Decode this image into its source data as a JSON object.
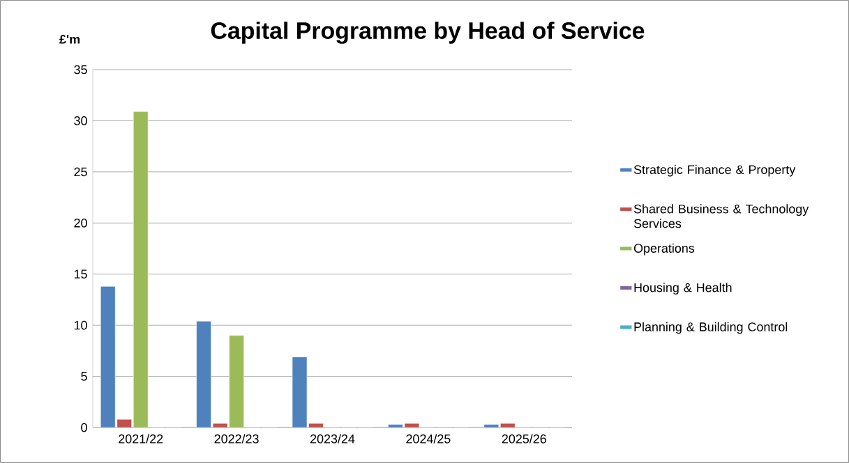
{
  "chart_data": {
    "type": "bar",
    "title": "Capital Programme by Head of Service",
    "ylabel": "£'m",
    "categories": [
      "2021/22",
      "2022/23",
      "2023/24",
      "2024/25",
      "2025/26"
    ],
    "series": [
      {
        "name": "Strategic Finance & Property",
        "color": "#4f81bd",
        "values": [
          13.8,
          10.4,
          6.9,
          0.3,
          0.3
        ]
      },
      {
        "name": "Shared Business & Technology Services",
        "color": "#c0504d",
        "values": [
          0.8,
          0.4,
          0.4,
          0.4,
          0.4
        ]
      },
      {
        "name": "Operations",
        "color": "#9bbb59",
        "values": [
          30.9,
          9.0,
          0,
          0,
          0
        ]
      },
      {
        "name": "Housing & Health",
        "color": "#8064a2",
        "values": [
          0,
          0,
          0,
          0,
          0
        ]
      },
      {
        "name": "Planning & Building Control",
        "color": "#4bacc6",
        "values": [
          0,
          0,
          0,
          0,
          0
        ]
      }
    ],
    "ylim": [
      0,
      35
    ],
    "yticks": [
      0,
      5,
      10,
      15,
      20,
      25,
      30,
      35
    ],
    "grid": "y",
    "legend": "right"
  }
}
